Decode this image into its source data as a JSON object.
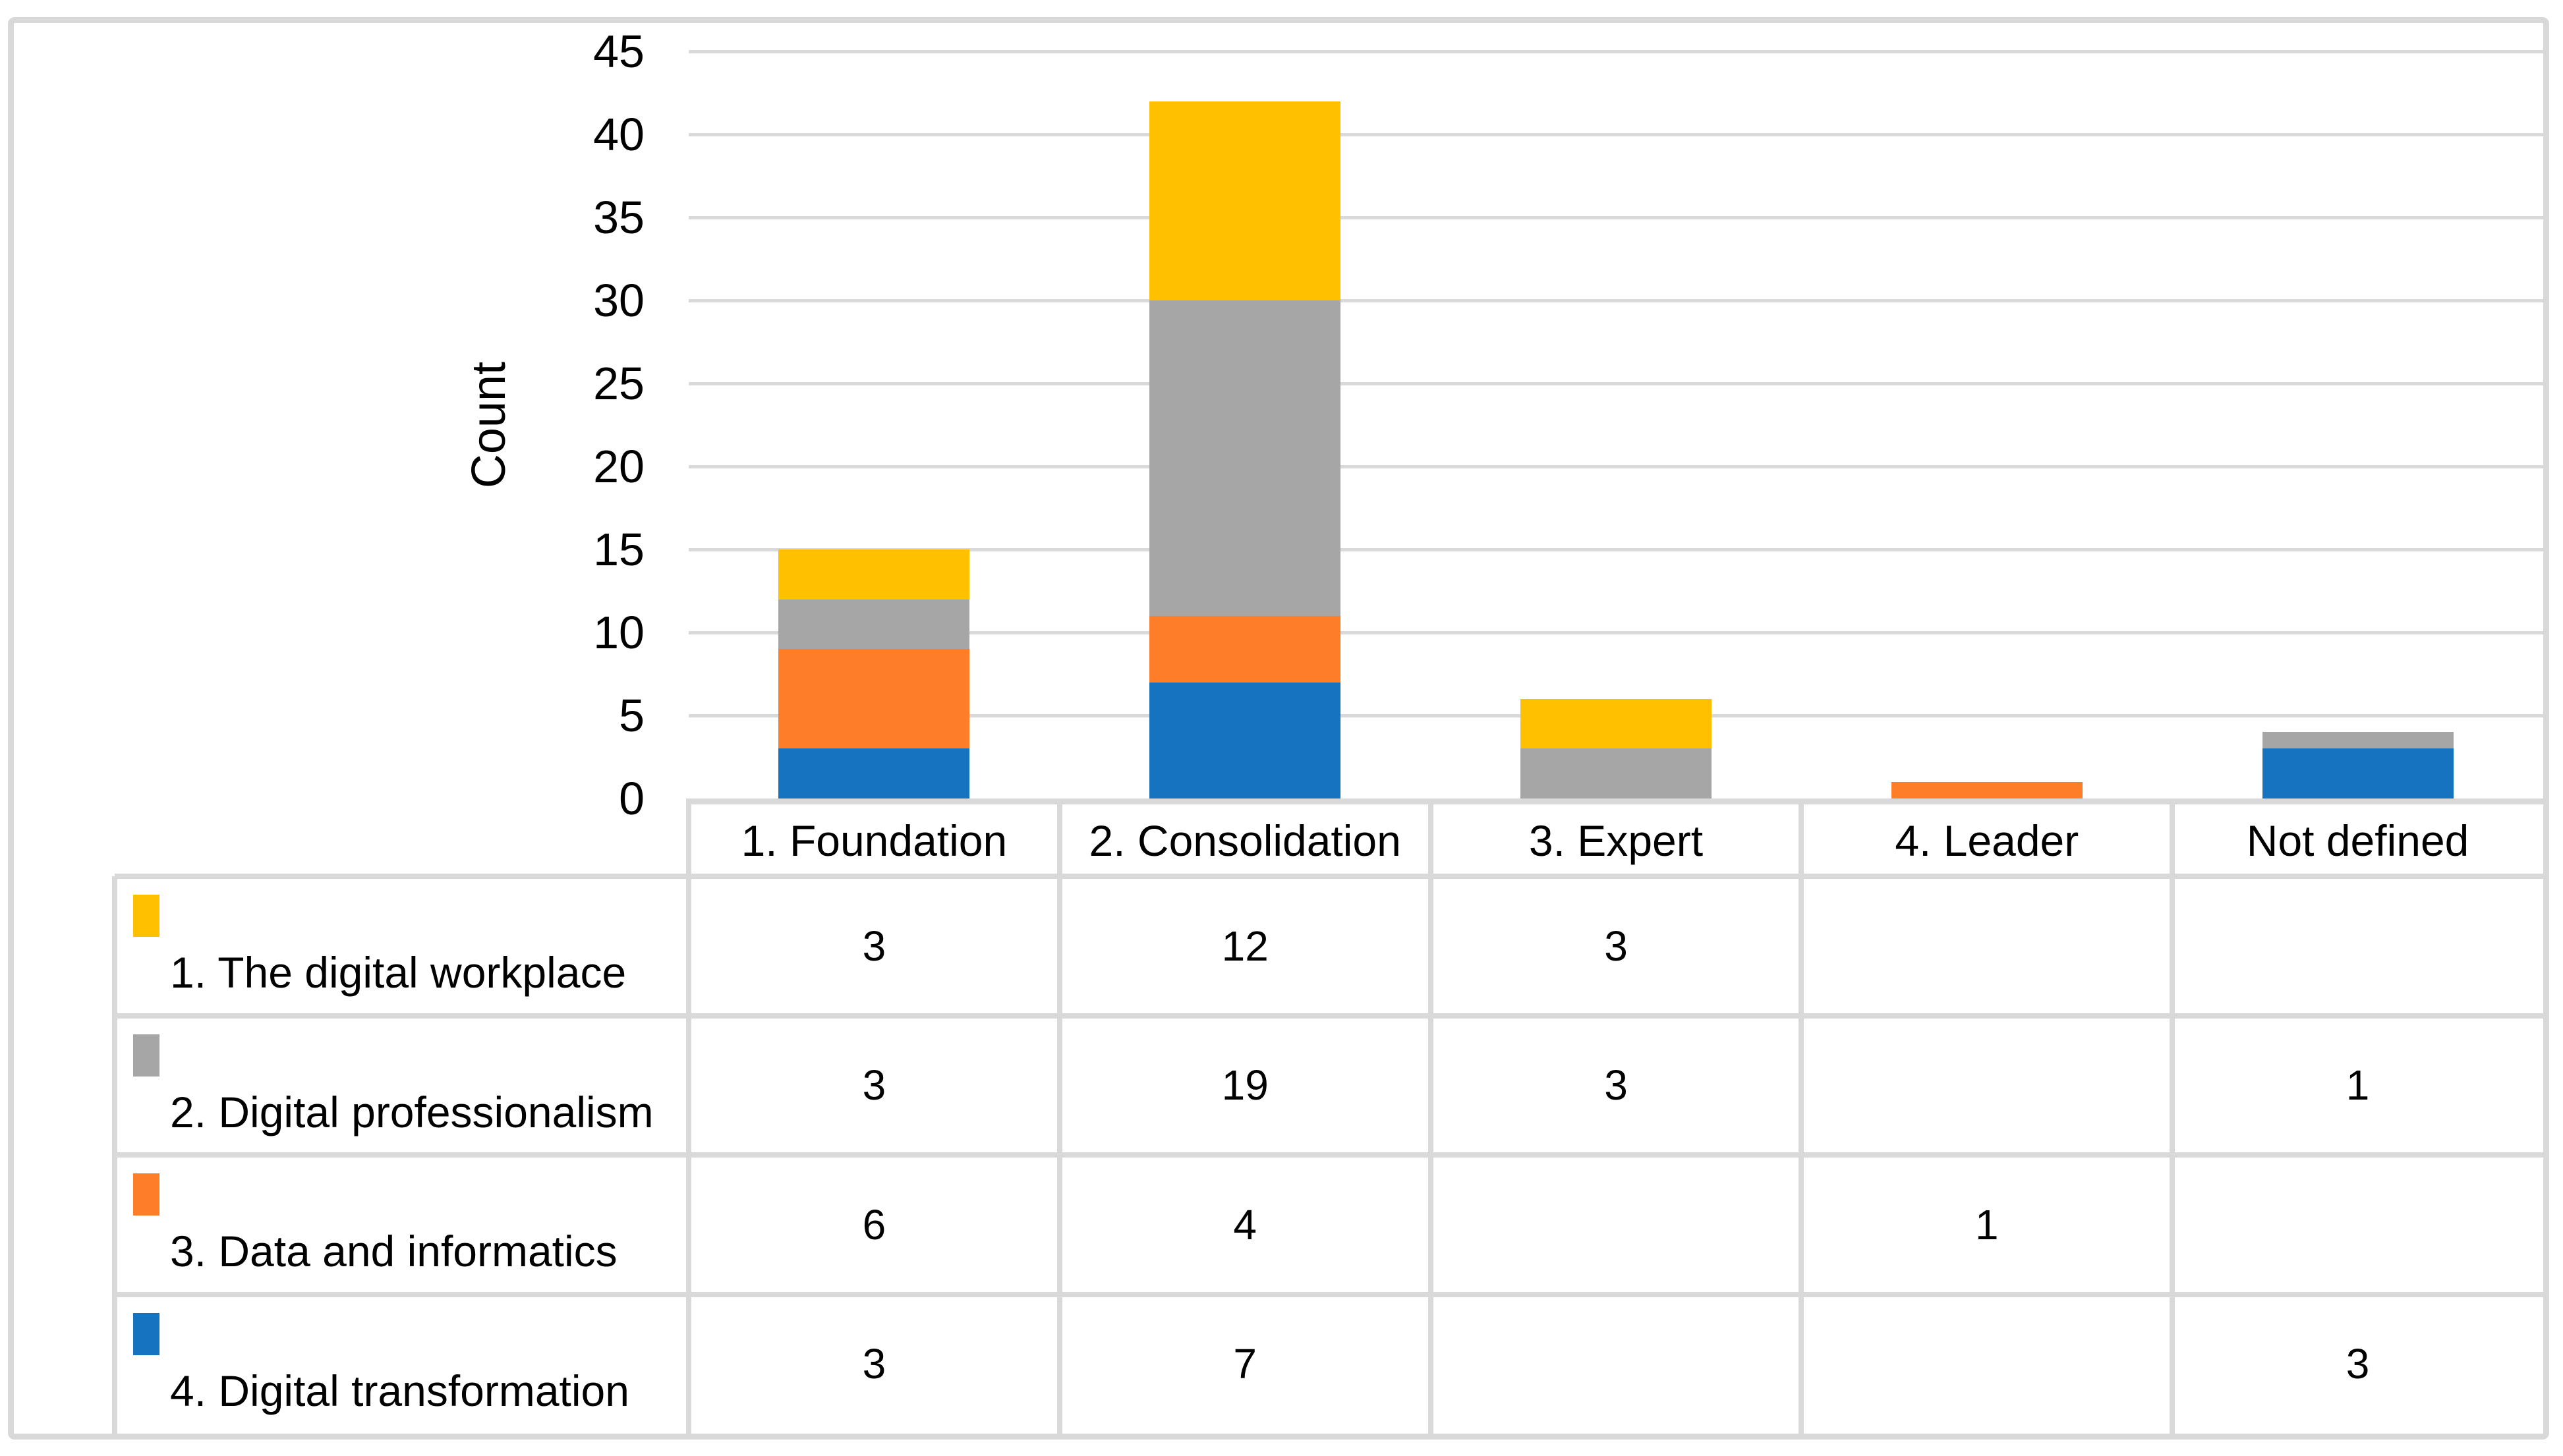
{
  "figure": {
    "background_color": "#FFFFFF",
    "border_color": "#D9D9D9",
    "gridline_color": "#D9D9D9"
  },
  "chart_data": {
    "type": "bar",
    "stacked": true,
    "title": "",
    "xlabel": "",
    "ylabel": "Count",
    "ylim": [
      0,
      45
    ],
    "ytick_step": 5,
    "yticks": [
      0,
      5,
      10,
      15,
      20,
      25,
      30,
      35,
      40,
      45
    ],
    "grid": true,
    "legend_position": "table-left-column",
    "data_table_shown": true,
    "categories": [
      "1. Foundation",
      "2. Consolidation",
      "3. Expert",
      "4. Leader",
      "Not defined"
    ],
    "series": [
      {
        "name": "1. The digital workplace",
        "color": "#FFC000",
        "values": [
          3,
          12,
          3,
          null,
          null
        ]
      },
      {
        "name": "2. Digital professionalism",
        "color": "#A6A6A6",
        "values": [
          3,
          19,
          3,
          null,
          1
        ]
      },
      {
        "name": "3. Data and informatics",
        "color": "#FD7D28",
        "values": [
          6,
          4,
          null,
          1,
          null
        ]
      },
      {
        "name": "4. Digital transformation",
        "color": "#1673C0",
        "values": [
          3,
          7,
          null,
          null,
          3
        ]
      }
    ],
    "stack_order_bottom_to_top": [
      "4. Digital transformation",
      "3. Data and informatics",
      "2. Digital professionalism",
      "1. The digital workplace"
    ],
    "category_totals": [
      15,
      42,
      6,
      1,
      4
    ]
  }
}
